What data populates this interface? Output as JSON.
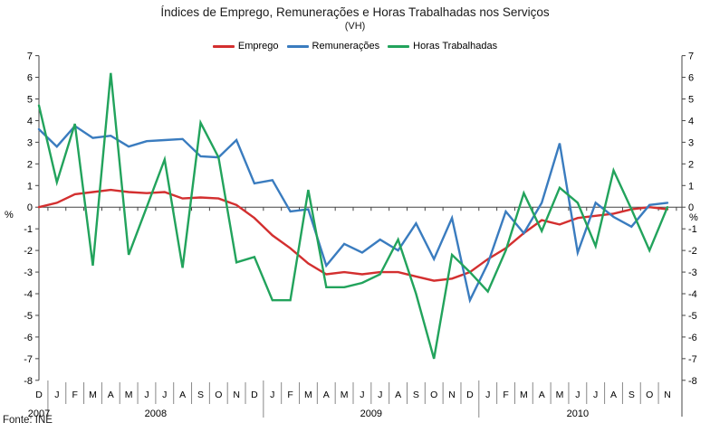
{
  "title": "Índices de Emprego, Remunerações e Horas Trabalhadas nos Serviços",
  "subtitle": "(VH)",
  "source": "Fonte: INE",
  "legend": [
    {
      "label": "Emprego",
      "color": "#d32f2f"
    },
    {
      "label": "Remunerações",
      "color": "#3a7cbf"
    },
    {
      "label": "Horas Trabalhadas",
      "color": "#22a35c"
    }
  ],
  "chart_data": {
    "type": "line",
    "title": "Índices de Emprego, Remunerações e Horas Trabalhadas nos Serviços",
    "subtitle": "(VH)",
    "unit": "%",
    "ylim": [
      -8,
      7
    ],
    "ytick_step": 1,
    "grid": "zero-line-only",
    "legend_position": "top-center",
    "axis_color": "#444444",
    "separator_color": "#888888",
    "categories": [
      "D",
      "J",
      "F",
      "M",
      "A",
      "M",
      "J",
      "J",
      "A",
      "S",
      "O",
      "N",
      "D",
      "J",
      "F",
      "M",
      "A",
      "M",
      "J",
      "J",
      "A",
      "S",
      "O",
      "N",
      "D",
      "J",
      "F",
      "M",
      "A",
      "M",
      "J",
      "J",
      "A",
      "S",
      "O",
      "N"
    ],
    "years": [
      {
        "label": "2007",
        "from": 0,
        "to": 0
      },
      {
        "label": "2008",
        "from": 1,
        "to": 12
      },
      {
        "label": "2009",
        "from": 13,
        "to": 24
      },
      {
        "label": "2010",
        "from": 25,
        "to": 35
      }
    ],
    "series": [
      {
        "name": "Emprego",
        "color": "#d32f2f",
        "values": [
          0.0,
          0.2,
          0.6,
          0.7,
          0.8,
          0.7,
          0.65,
          0.7,
          0.4,
          0.45,
          0.4,
          0.1,
          -0.5,
          -1.3,
          -1.9,
          -2.6,
          -3.1,
          -3.0,
          -3.1,
          -3.0,
          -3.0,
          -3.2,
          -3.4,
          -3.3,
          -3.0,
          -2.4,
          -1.9,
          -1.2,
          -0.6,
          -0.8,
          -0.5,
          -0.4,
          -0.3,
          -0.1,
          0.0,
          -0.1
        ]
      },
      {
        "name": "Remunerações",
        "color": "#3a7cbf",
        "values": [
          3.6,
          2.8,
          3.75,
          3.2,
          3.3,
          2.8,
          3.05,
          3.1,
          3.15,
          2.35,
          2.3,
          3.1,
          1.1,
          1.25,
          -0.2,
          -0.1,
          -2.7,
          -1.7,
          -2.1,
          -1.5,
          -2.0,
          -0.75,
          -2.4,
          -0.5,
          -4.3,
          -2.6,
          -0.2,
          -1.2,
          0.2,
          2.95,
          -2.1,
          0.2,
          -0.45,
          -0.9,
          0.1,
          0.2
        ]
      },
      {
        "name": "Horas Trabalhadas",
        "color": "#22a35c",
        "values": [
          4.7,
          1.15,
          3.85,
          -2.7,
          6.2,
          -2.2,
          0.0,
          2.2,
          -2.8,
          3.9,
          2.3,
          -2.55,
          -2.3,
          -4.3,
          -4.3,
          0.8,
          -3.7,
          -3.7,
          -3.5,
          -3.1,
          -1.5,
          -4.0,
          -7.0,
          -2.2,
          -3.0,
          -3.9,
          -2.0,
          0.65,
          -1.1,
          0.9,
          0.2,
          -1.8,
          1.7,
          -0.1,
          -2.0,
          0.0
        ]
      }
    ]
  }
}
